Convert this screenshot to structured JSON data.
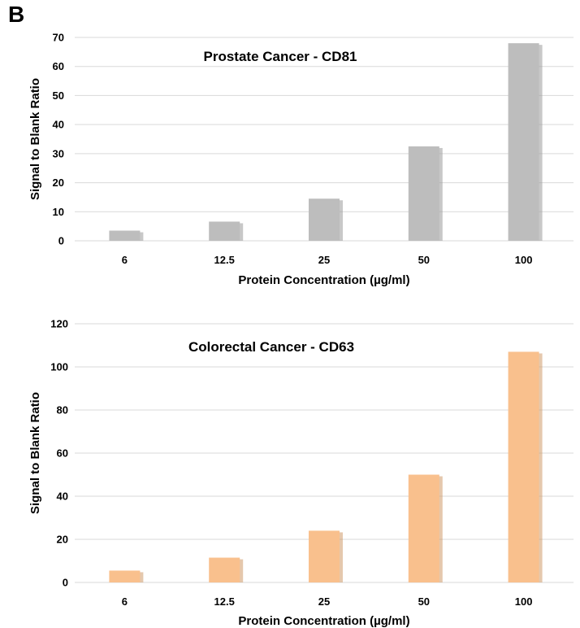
{
  "panel_label": "B",
  "chart_data": [
    {
      "type": "bar",
      "title": "Prostate Cancer - CD81",
      "xlabel": "Protein Concentration (µg/ml)",
      "ylabel": "Signal to Blank Ratio",
      "categories": [
        "6",
        "12.5",
        "25",
        "50",
        "100"
      ],
      "values": [
        3.5,
        6.6,
        14.5,
        32.5,
        68
      ],
      "ylim": [
        0,
        70
      ],
      "yticks": [
        0,
        10,
        20,
        30,
        40,
        50,
        60,
        70
      ],
      "grid": true,
      "legend": "none",
      "bar_color": "#bdbdbd",
      "shadow_color": "#9a9a9a"
    },
    {
      "type": "bar",
      "title": "Colorectal Cancer - CD63",
      "xlabel": "Protein Concentration (µg/ml)",
      "ylabel": "Signal to Blank Ratio",
      "categories": [
        "6",
        "12.5",
        "25",
        "50",
        "100"
      ],
      "values": [
        5.5,
        11.5,
        24,
        50,
        107
      ],
      "ylim": [
        0,
        120
      ],
      "yticks": [
        0,
        20,
        40,
        60,
        80,
        100,
        120
      ],
      "grid": true,
      "legend": "none",
      "bar_color": "#f9c08d",
      "shadow_color": "#cf9a6a"
    }
  ]
}
